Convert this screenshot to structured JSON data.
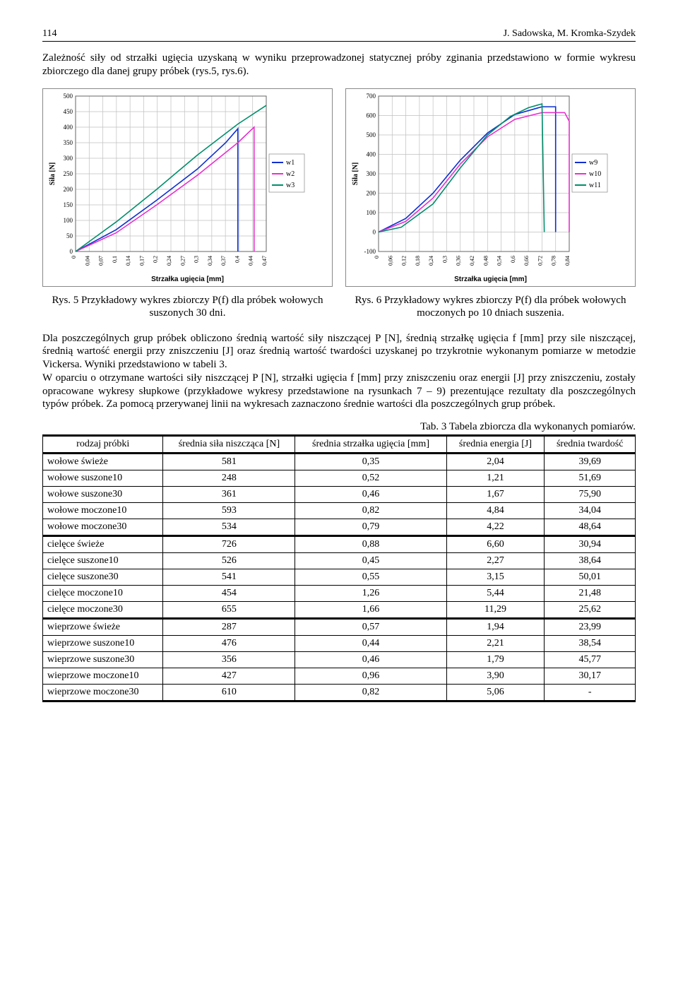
{
  "header": {
    "page_number": "114",
    "authors": "J. Sadowska, M. Kromka-Szydek"
  },
  "intro_paragraph": "Zależność siły od strzałki ugięcia uzyskaną w wyniku przeprowadzonej statycznej próby zginania przedstawiono w formie wykresu zbiorczego dla danej grupy próbek (rys.5, rys.6).",
  "chart_left": {
    "type": "line",
    "ylabel": "Siła [N]",
    "xlabel": "Strzałka ugięcia [mm]",
    "ylim": [
      0,
      500
    ],
    "ytick_step": 50,
    "xticks": [
      "0",
      "0,04",
      "0,07",
      "0,1",
      "0,14",
      "0,17",
      "0,2",
      "0,24",
      "0,27",
      "0,3",
      "0,34",
      "0,37",
      "0,4",
      "0,44",
      "0,47"
    ],
    "legend": [
      "w1",
      "w2",
      "w3"
    ],
    "colors": {
      "w1": "#0b2fd0",
      "w2": "#e82fcf",
      "w3": "#008f6b",
      "grid": "#bfbfbf",
      "bg": "#ffffff"
    },
    "series": {
      "w1": [
        [
          0,
          0
        ],
        [
          0.1,
          70
        ],
        [
          0.2,
          165
        ],
        [
          0.3,
          265
        ],
        [
          0.37,
          350
        ],
        [
          0.4,
          395
        ],
        [
          0.4,
          0
        ]
      ],
      "w2": [
        [
          0,
          0
        ],
        [
          0.1,
          60
        ],
        [
          0.2,
          150
        ],
        [
          0.3,
          245
        ],
        [
          0.4,
          350
        ],
        [
          0.44,
          400
        ],
        [
          0.44,
          0
        ]
      ],
      "w3": [
        [
          0,
          0
        ],
        [
          0.1,
          95
        ],
        [
          0.2,
          200
        ],
        [
          0.3,
          310
        ],
        [
          0.4,
          410
        ],
        [
          0.47,
          470
        ],
        [
          0.47,
          470
        ]
      ]
    },
    "label_fontsize": 10,
    "tick_fontsize": 9,
    "line_width": 1.6,
    "aspect": [
      370,
      240
    ]
  },
  "chart_right": {
    "type": "line",
    "ylabel": "Siła [N]",
    "xlabel": "Strzałka ugięcia [mm]",
    "ylim": [
      -100,
      700
    ],
    "ytick_step": 100,
    "xticks": [
      "0",
      "0,06",
      "0,12",
      "0,18",
      "0,24",
      "0,3",
      "0,36",
      "0,42",
      "0,48",
      "0,54",
      "0,6",
      "0,66",
      "0,72",
      "0,78",
      "0,84"
    ],
    "legend": [
      "w9",
      "w10",
      "w11"
    ],
    "colors": {
      "w9": "#0b2fd0",
      "w10": "#e82fcf",
      "w11": "#008f6b",
      "grid": "#bfbfbf",
      "bg": "#ffffff"
    },
    "series": {
      "w9": [
        [
          0,
          0
        ],
        [
          0.12,
          70
        ],
        [
          0.24,
          200
        ],
        [
          0.36,
          370
        ],
        [
          0.48,
          510
        ],
        [
          0.6,
          605
        ],
        [
          0.72,
          645
        ],
        [
          0.78,
          645
        ],
        [
          0.78,
          0
        ]
      ],
      "w10": [
        [
          0,
          0
        ],
        [
          0.12,
          55
        ],
        [
          0.24,
          175
        ],
        [
          0.36,
          350
        ],
        [
          0.48,
          490
        ],
        [
          0.6,
          580
        ],
        [
          0.72,
          615
        ],
        [
          0.82,
          615
        ],
        [
          0.84,
          570
        ],
        [
          0.84,
          0
        ]
      ],
      "w11": [
        [
          0,
          0
        ],
        [
          0.1,
          25
        ],
        [
          0.24,
          145
        ],
        [
          0.36,
          330
        ],
        [
          0.48,
          500
        ],
        [
          0.58,
          595
        ],
        [
          0.66,
          640
        ],
        [
          0.72,
          660
        ],
        [
          0.73,
          0
        ]
      ]
    },
    "label_fontsize": 10,
    "tick_fontsize": 9,
    "line_width": 1.6,
    "aspect": [
      370,
      240
    ]
  },
  "fig5_caption": "Rys. 5  Przykładowy wykres zbiorczy P(f) dla próbek wołowych suszonych 30 dni.",
  "fig6_caption": "Rys. 6 Przykładowy wykres zbiorczy P(f) dla próbek wołowych moczonych po 10 dniach suszenia.",
  "mid_paragraph": "Dla poszczególnych grup próbek obliczono średnią wartość siły niszczącej P [N], średnią strzałkę ugięcia f [mm] przy sile niszczącej, średnią wartość energii przy zniszczeniu [J] oraz średnią wartość twardości uzyskanej po trzykrotnie wykonanym pomiarze w metodzie Vickersa. Wyniki przedstawiono w tabeli 3.\nW oparciu o otrzymane wartości siły niszczącej P [N], strzałki ugięcia f [mm] przy zniszczeniu oraz energii [J] przy zniszczeniu, zostały opracowane wykresy słupkowe (przykładowe wykresy przedstawione na rysunkach 7 – 9) prezentujące rezultaty dla poszczególnych typów próbek. Za pomocą przerywanej linii na wykresach zaznaczono średnie wartości dla poszczególnych grup próbek.",
  "table": {
    "title": "Tab. 3 Tabela zbiorcza dla wykonanych pomiarów.",
    "columns": [
      "rodzaj próbki",
      "średnia siła niszcząca [N]",
      "średnia strzałka ugięcia [mm]",
      "średnia energia [J]",
      "średnia twardość"
    ],
    "groups": [
      [
        [
          "wołowe świeże",
          "581",
          "0,35",
          "2,04",
          "39,69"
        ],
        [
          "wołowe suszone10",
          "248",
          "0,52",
          "1,21",
          "51,69"
        ],
        [
          "wołowe suszone30",
          "361",
          "0,46",
          "1,67",
          "75,90"
        ],
        [
          "wołowe moczone10",
          "593",
          "0,82",
          "4,84",
          "34,04"
        ],
        [
          "wołowe moczone30",
          "534",
          "0,79",
          "4,22",
          "48,64"
        ]
      ],
      [
        [
          "cielęce świeże",
          "726",
          "0,88",
          "6,60",
          "30,94"
        ],
        [
          "cielęce suszone10",
          "526",
          "0,45",
          "2,27",
          "38,64"
        ],
        [
          "cielęce suszone30",
          "541",
          "0,55",
          "3,15",
          "50,01"
        ],
        [
          "cielęce moczone10",
          "454",
          "1,26",
          "5,44",
          "21,48"
        ],
        [
          "cielęce moczone30",
          "655",
          "1,66",
          "11,29",
          "25,62"
        ]
      ],
      [
        [
          "wieprzowe świeże",
          "287",
          "0,57",
          "1,94",
          "23,99"
        ],
        [
          "wieprzowe suszone10",
          "476",
          "0,44",
          "2,21",
          "38,54"
        ],
        [
          "wieprzowe suszone30",
          "356",
          "0,46",
          "1,79",
          "45,77"
        ],
        [
          "wieprzowe moczone10",
          "427",
          "0,96",
          "3,90",
          "30,17"
        ],
        [
          "wieprzowe moczone30",
          "610",
          "0,82",
          "5,06",
          "-"
        ]
      ]
    ]
  }
}
